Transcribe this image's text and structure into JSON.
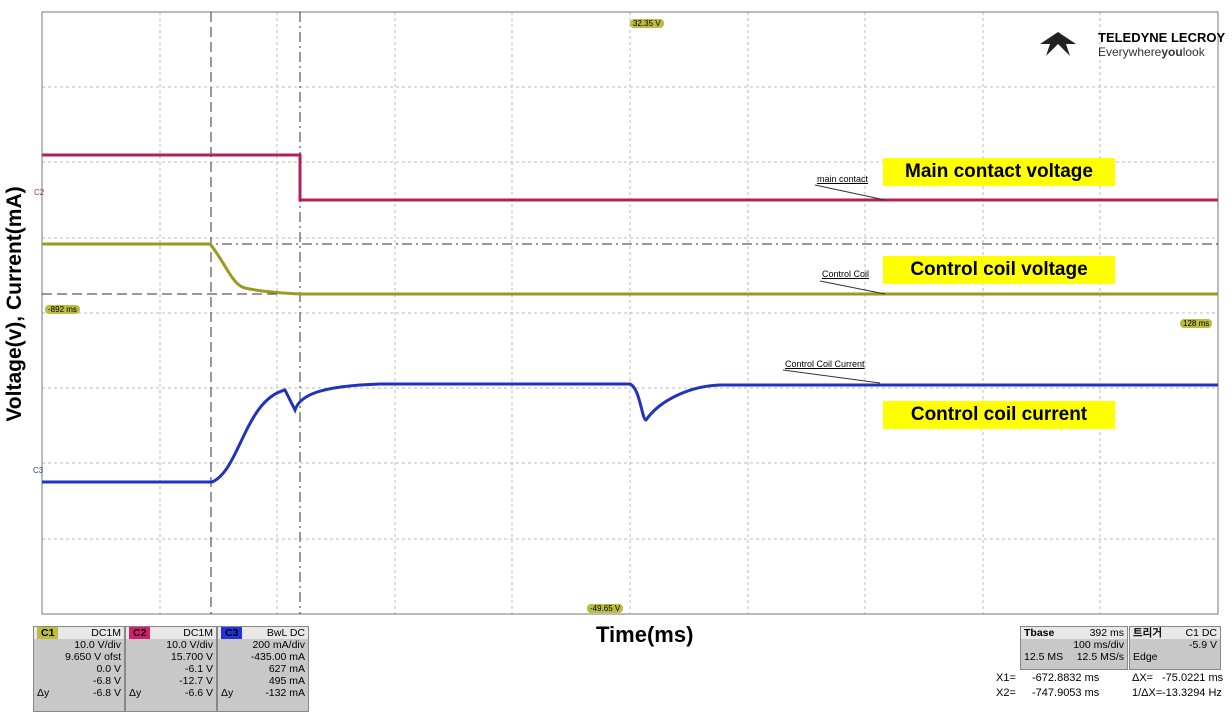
{
  "axes": {
    "y_label": "Voltage(v), Current(mA)",
    "x_label": "Time(ms)"
  },
  "logo": {
    "brand": "TELEDYNE LECROY",
    "tagline_a": "Everywhere",
    "tagline_b": "you",
    "tagline_c": "look"
  },
  "annotations": [
    "Main contact voltage",
    "Control coil voltage",
    "Control coil current"
  ],
  "trace_labels": [
    "main contact",
    "Control Coil",
    "Control Coil Current"
  ],
  "channel_markers": [
    "C2",
    "C3"
  ],
  "cursor_tags": {
    "top": "32.35 V",
    "bottom": "-49.65 V",
    "left": "-892 ms",
    "right": "128 ms"
  },
  "channels": [
    {
      "name": "C1",
      "coupling": "DC1M",
      "scale": "10.0 V/div",
      "offset": "9.650 V ofst",
      "cur1": "0.0 V",
      "cur2": "-6.8 V",
      "delta_label": "Δy",
      "delta": "-6.8 V"
    },
    {
      "name": "C2",
      "coupling": "DC1M",
      "scale": "10.0 V/div",
      "offset": "15.700 V",
      "cur1": "-6.1 V",
      "cur2": "-12.7 V",
      "delta_label": "Δy",
      "delta": "-6.6 V"
    },
    {
      "name": "C3",
      "coupling": "BwL DC",
      "scale": "200 mA/div",
      "offset": "-435.00 mA",
      "cur1": "627 mA",
      "cur2": "495 mA",
      "delta_label": "Δy",
      "delta": "-132 mA"
    }
  ],
  "timebase": {
    "label": "Tbase",
    "delay": "392 ms",
    "scale": "100 ms/div",
    "samples": "12.5 MS",
    "rate": "12.5 MS/s"
  },
  "trigger": {
    "label": "트리거",
    "source": "C1 DC",
    "level": "-5.9 V",
    "mode": "Edge"
  },
  "readouts": [
    [
      "X1=",
      "-672.8832 ms",
      "ΔX=",
      "-75.0221 ms"
    ],
    [
      "X2=",
      "-747.9053 ms",
      "1/ΔX=",
      "-13.3294 Hz"
    ]
  ]
}
